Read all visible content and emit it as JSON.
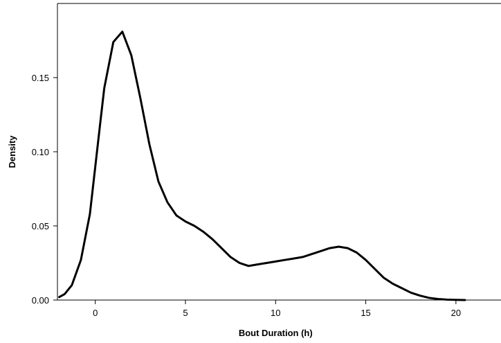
{
  "chart_data": {
    "type": "line",
    "title": "",
    "xlabel": "Bout Duration (h)",
    "ylabel": "Density",
    "xlim": [
      -2.1,
      22.5
    ],
    "ylim": [
      0.0,
      0.2
    ],
    "x_ticks": [
      0,
      5,
      10,
      15,
      20
    ],
    "x_tick_labels": [
      "0",
      "5",
      "10",
      "15",
      "20"
    ],
    "y_ticks": [
      0.0,
      0.05,
      0.1,
      0.15
    ],
    "y_tick_labels": [
      "0.00",
      "0.05",
      "0.10",
      "0.15"
    ],
    "grid": false,
    "legend": "none",
    "series": [
      {
        "color": "#000000",
        "x": [
          -2.0,
          -1.7,
          -1.3,
          -0.8,
          -0.3,
          0.0,
          0.3,
          0.5,
          1.0,
          1.5,
          2.0,
          2.5,
          3.0,
          3.5,
          4.0,
          4.5,
          5.0,
          5.5,
          6.0,
          6.5,
          7.0,
          7.5,
          8.0,
          8.5,
          9.0,
          9.5,
          10.0,
          10.5,
          11.0,
          11.5,
          12.0,
          12.5,
          13.0,
          13.5,
          14.0,
          14.5,
          15.0,
          15.5,
          16.0,
          16.5,
          17.0,
          17.5,
          18.0,
          18.5,
          19.0,
          19.5,
          20.0,
          20.5
        ],
        "y": [
          0.002,
          0.004,
          0.01,
          0.027,
          0.058,
          0.09,
          0.122,
          0.143,
          0.174,
          0.181,
          0.165,
          0.136,
          0.105,
          0.08,
          0.066,
          0.057,
          0.053,
          0.05,
          0.046,
          0.041,
          0.035,
          0.029,
          0.025,
          0.023,
          0.024,
          0.025,
          0.026,
          0.027,
          0.028,
          0.029,
          0.031,
          0.033,
          0.035,
          0.036,
          0.035,
          0.032,
          0.027,
          0.021,
          0.015,
          0.011,
          0.008,
          0.005,
          0.003,
          0.0015,
          0.0007,
          0.0003,
          0.0001,
          0.0
        ]
      }
    ]
  }
}
